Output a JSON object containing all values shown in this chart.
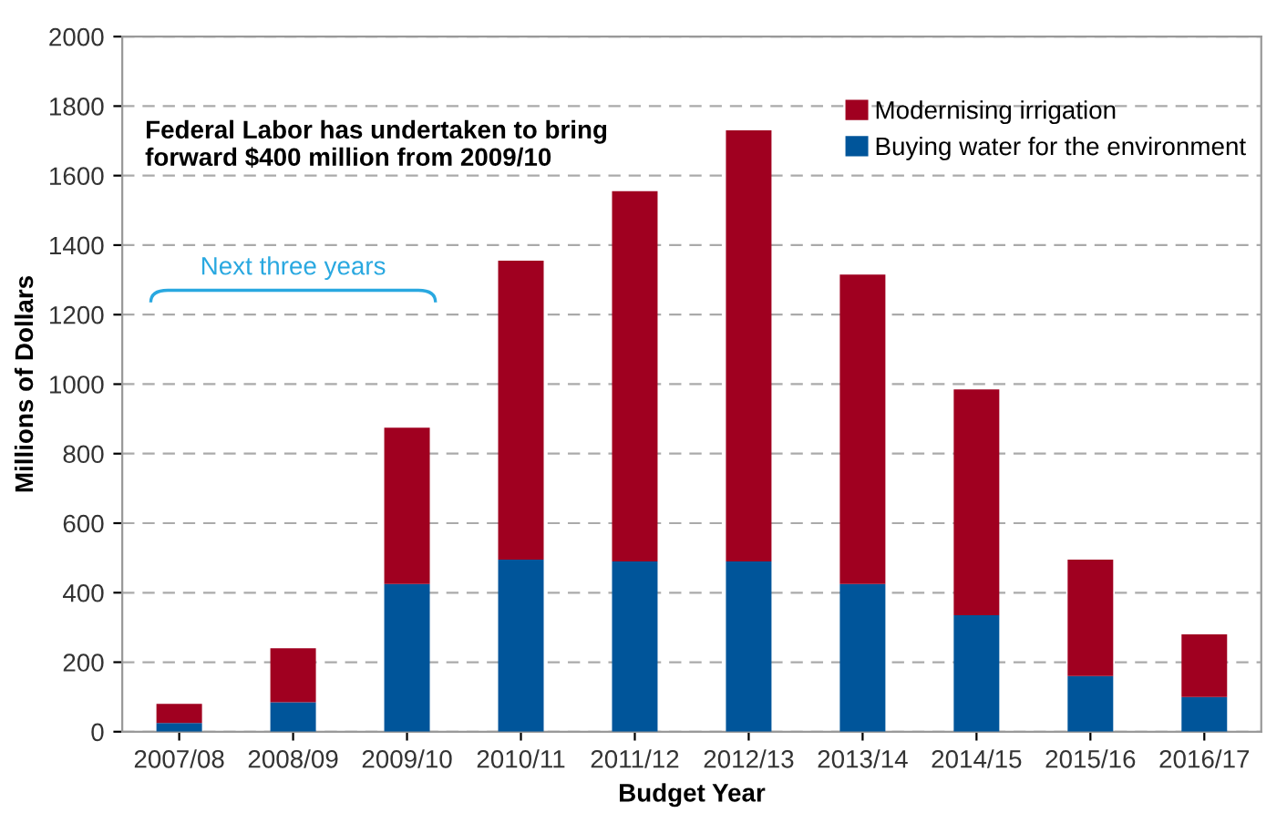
{
  "chart_data": {
    "type": "bar",
    "stacked": true,
    "xlabel": "Budget Year",
    "ylabel": "Millions of Dollars",
    "categories": [
      "2007/08",
      "2008/09",
      "2009/10",
      "2010/11",
      "2011/12",
      "2012/13",
      "2013/14",
      "2014/15",
      "2015/16",
      "2016/17"
    ],
    "series": [
      {
        "name": "Buying water for the environment",
        "color": "#00559a",
        "values": [
          25,
          85,
          425,
          495,
          490,
          490,
          425,
          335,
          160,
          100
        ]
      },
      {
        "name": "Modernising irrigation",
        "color": "#a00020",
        "values": [
          55,
          155,
          450,
          860,
          1065,
          1240,
          890,
          650,
          335,
          180
        ]
      }
    ],
    "ylim": [
      0,
      2000
    ],
    "yticks": [
      0,
      200,
      400,
      600,
      800,
      1000,
      1200,
      1400,
      1600,
      1800,
      2000
    ],
    "grid": "y",
    "legend": "top right",
    "annotations": [
      "Federal Labor has undertaken to bring\nforward $400 million from 2009/10",
      "Next three years"
    ]
  }
}
